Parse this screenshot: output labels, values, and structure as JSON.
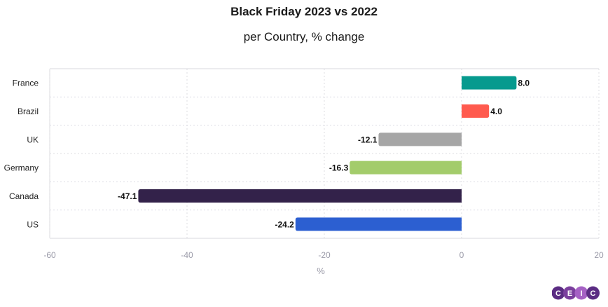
{
  "chart_data": {
    "type": "bar",
    "orientation": "horizontal",
    "title": "Black Friday 2023 vs 2022",
    "subtitle": "per Country, % change",
    "xlabel": "%",
    "ylabel": "",
    "xlim": [
      -60,
      20
    ],
    "xticks": [
      -60,
      -40,
      -20,
      0,
      20
    ],
    "grid": true,
    "categories": [
      "France",
      "Brazil",
      "UK",
      "Germany",
      "Canada",
      "US"
    ],
    "values": [
      8.0,
      4.0,
      -12.1,
      -16.3,
      -47.1,
      -24.2
    ],
    "value_labels": [
      "8.0",
      "4.0",
      "-12.1",
      "-16.3",
      "-47.1",
      "-24.2"
    ],
    "colors": [
      "#069a8e",
      "#ff5a4e",
      "#a6a6a6",
      "#a3cc6b",
      "#33224a",
      "#2c5fd1"
    ]
  },
  "branding": {
    "logo_letters": [
      "C",
      "E",
      "I",
      "C"
    ],
    "logo_colors": [
      "#5b2c83",
      "#7b3f9e",
      "#a561c4",
      "#5b2c83"
    ]
  }
}
